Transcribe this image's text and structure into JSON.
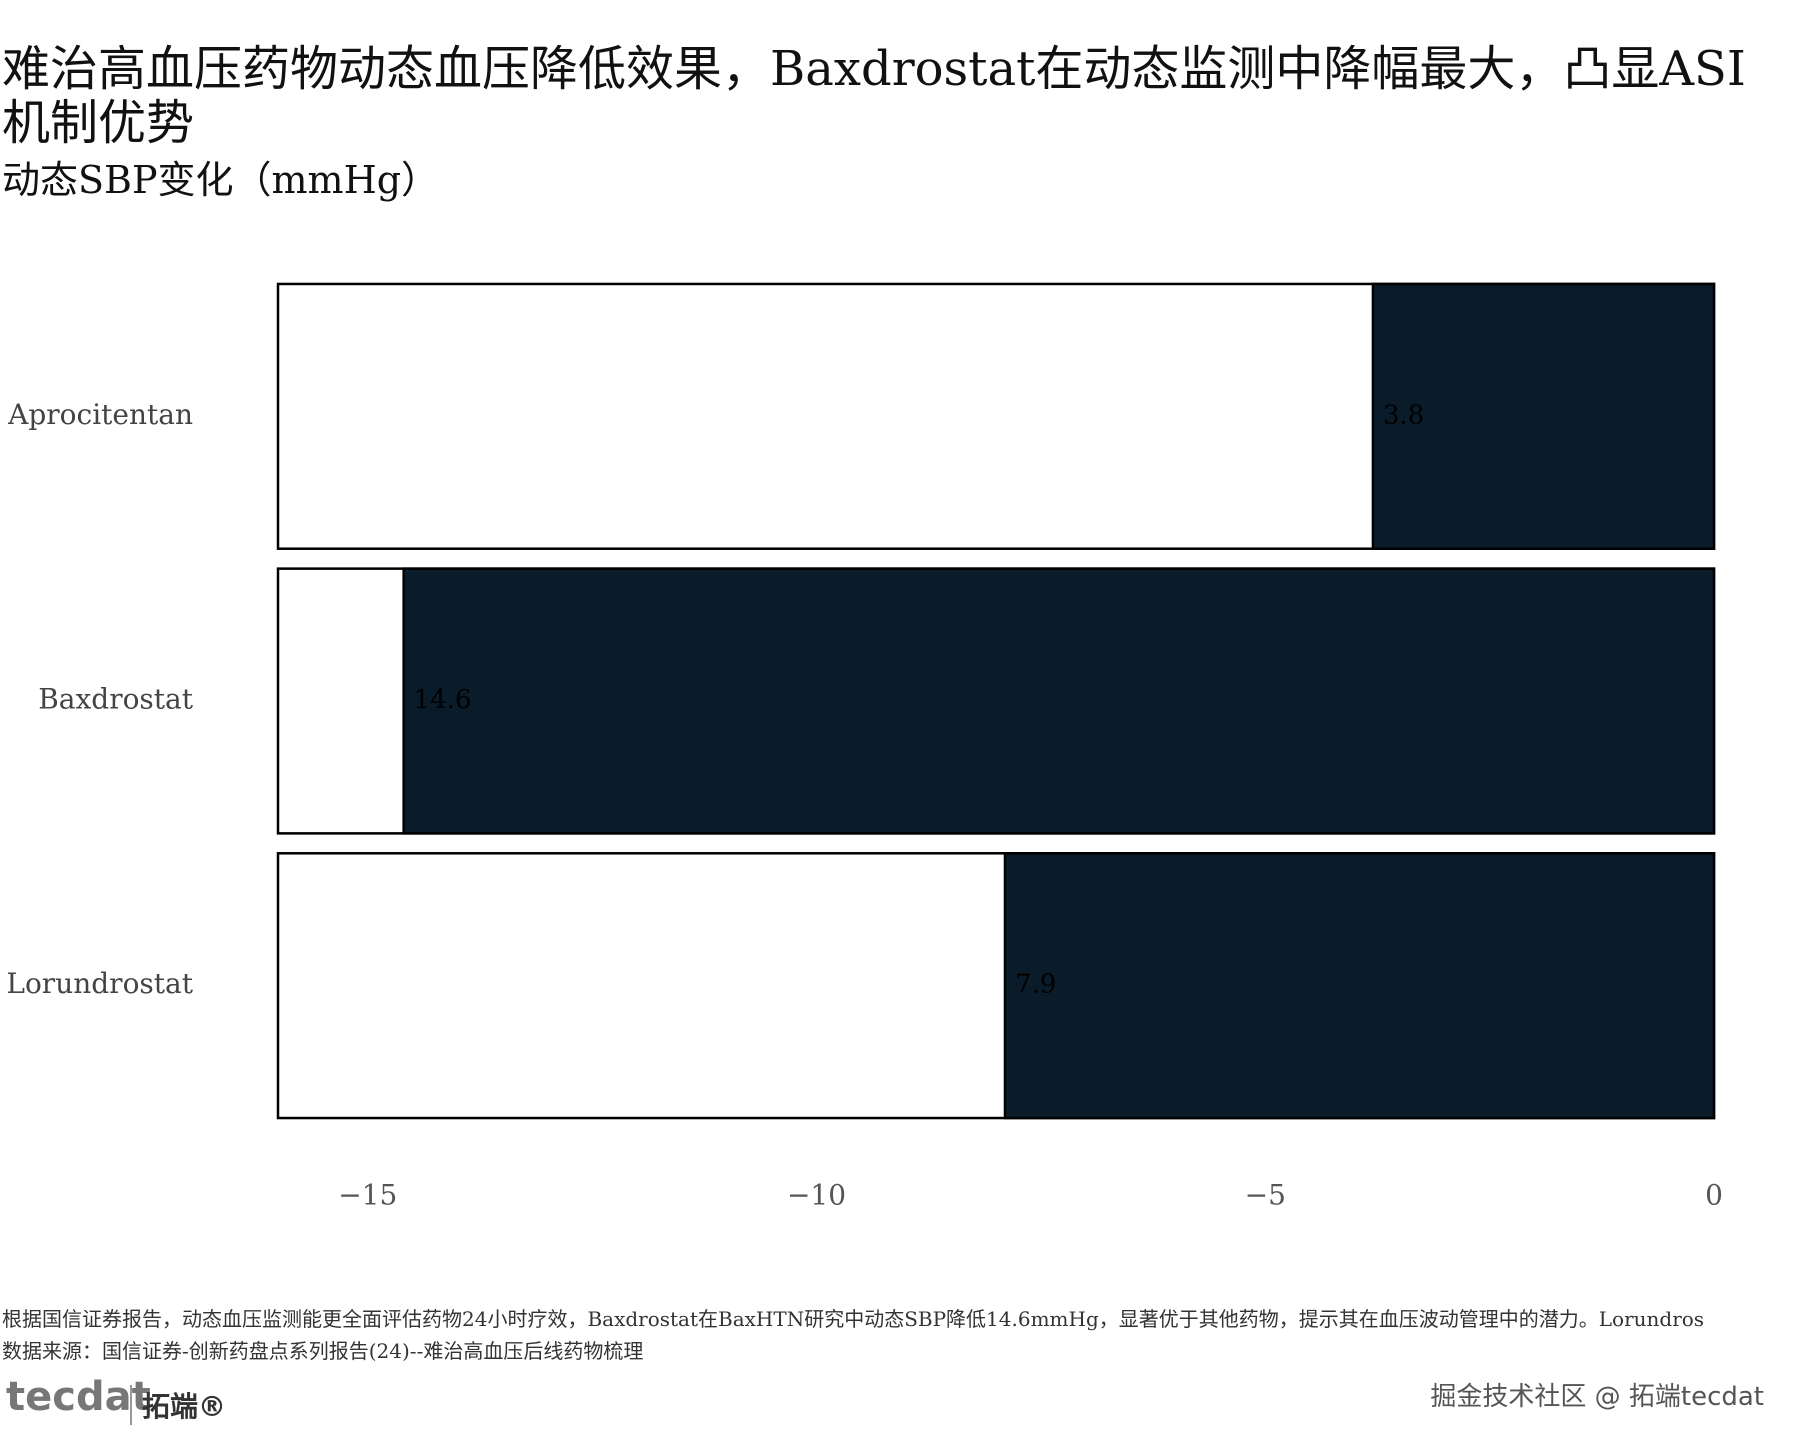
{
  "chart_data": {
    "type": "bar",
    "orientation": "horizontal",
    "title": "难治高血压药物动态血压降低效果，Baxdrostat在动态监测中降幅最大，凸显ASI机制优势",
    "subtitle": "动态SBP变化（mmHg）",
    "categories": [
      "Aprocitentan",
      "Baxdrostat",
      "Lorundrostat"
    ],
    "values": [
      -3.8,
      -14.6,
      -7.9
    ],
    "value_labels": [
      "3.8",
      "14.6",
      "7.9"
    ],
    "color": "#0a1c2a",
    "xlim": [
      -16,
      0
    ],
    "xticks": [
      {
        "value": -15,
        "label": "−15"
      },
      {
        "value": -10,
        "label": "−10"
      },
      {
        "value": -5,
        "label": "−5"
      },
      0
    ],
    "grid": false
  },
  "footer": {
    "note": "根据国信证券报告，动态血压监测能更全面评估药物24小时疗效，Baxdrostat在BaxHTN研究中动态SBP降低14.6mmHg，显著优于其他药物，提示其在血压波动管理中的潜力。Lorundros",
    "source": "数据来源：国信证券-创新药盘点系列报告(24)--难治高血压后线药物梳理",
    "logo": "tecdat",
    "logo_cn": "拓端®",
    "watermark": "掘金技术社区 @ 拓端tecdat"
  }
}
